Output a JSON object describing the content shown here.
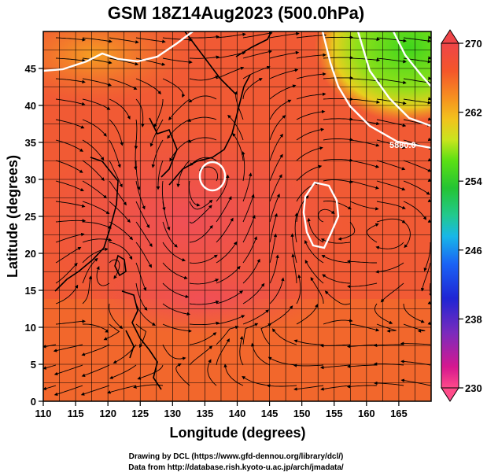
{
  "title": "GSM 18Z14Aug2023 (500.0hPa)",
  "x_label": "Longitude (degrees)",
  "y_label": "Latitude  (degrees)",
  "contour_label": "5880.0",
  "credits": {
    "line1": "Drawing by DCL (https://www.gfd-dennou.org/library/dcl/)",
    "line2": "Data from http://database.rish.kyoto-u.ac.jp/arch/jmadata/"
  },
  "map": {
    "lon_range": [
      110,
      170
    ],
    "lat_range": [
      0,
      50
    ],
    "lon_ticks": [
      "110",
      "115",
      "120",
      "125",
      "130",
      "135",
      "140",
      "145",
      "150",
      "155",
      "160",
      "165"
    ],
    "lat_ticks": [
      "0",
      "5",
      "10",
      "15",
      "20",
      "25",
      "30",
      "35",
      "40",
      "45"
    ],
    "lon_tick_values": [
      110,
      115,
      120,
      125,
      130,
      135,
      140,
      145,
      150,
      155,
      160,
      165
    ],
    "lat_tick_values": [
      0,
      5,
      10,
      15,
      20,
      25,
      30,
      35,
      40,
      45
    ],
    "grid": true
  },
  "colorbar": {
    "range": [
      230,
      270
    ],
    "ticks": [
      "270",
      "262",
      "254",
      "246",
      "238",
      "230"
    ],
    "tick_values": [
      270,
      262,
      254,
      246,
      238,
      230
    ],
    "colors": [
      "#ff4b8a",
      "#d6188f",
      "#7a2bbd",
      "#1f25d4",
      "#1a63f5",
      "#18b7e8",
      "#22c98f",
      "#24c433",
      "#5ce014",
      "#c9e41e",
      "#f2c21d",
      "#f6921f",
      "#f4562a",
      "#ee4548"
    ]
  }
}
